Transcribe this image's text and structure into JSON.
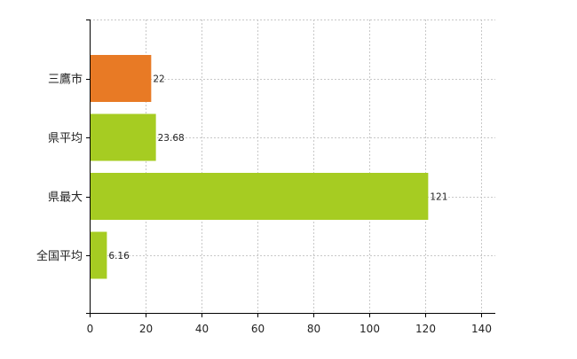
{
  "chart_data": {
    "type": "bar",
    "orientation": "horizontal",
    "categories": [
      "三鷹市",
      "県平均",
      "県最大",
      "全国平均"
    ],
    "values": [
      22,
      23.68,
      121,
      6.16
    ],
    "data_labels": [
      "22",
      "23.68",
      "121",
      "6.16"
    ],
    "bar_colors": [
      "#E87A25",
      "#A6CC22",
      "#A6CC22",
      "#A6CC22"
    ],
    "x_ticks": [
      "0",
      "20",
      "40",
      "60",
      "80",
      "100",
      "120",
      "140"
    ],
    "xlim": [
      0,
      145
    ],
    "grid": true,
    "legend": "none",
    "title": "",
    "xlabel": "",
    "ylabel": ""
  }
}
